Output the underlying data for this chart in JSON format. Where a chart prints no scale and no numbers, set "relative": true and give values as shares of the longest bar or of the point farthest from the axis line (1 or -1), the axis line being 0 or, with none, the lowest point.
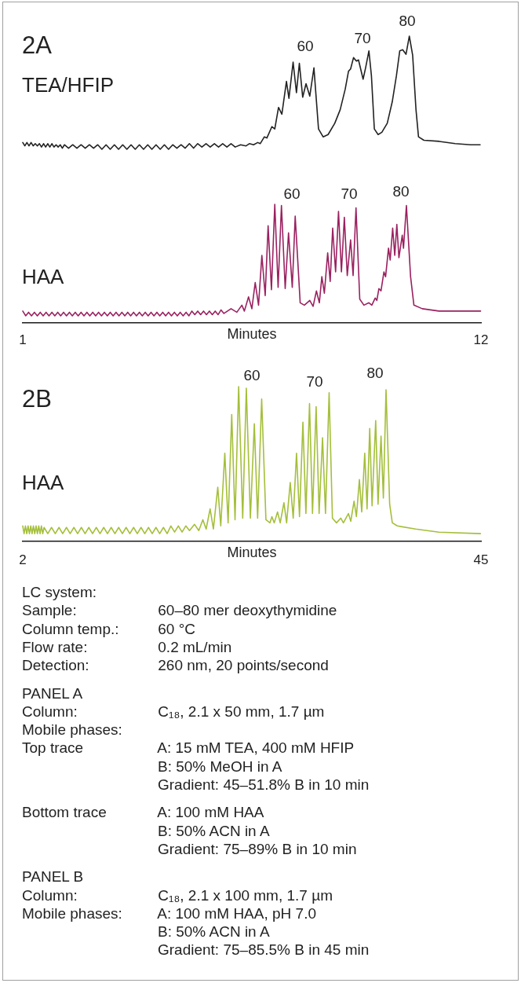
{
  "chart_data": [
    {
      "type": "line",
      "title": "2A",
      "relative": true,
      "xlim": [
        1,
        12
      ],
      "tick_labels": false,
      "series": [
        {
          "name": "TEA/HFIP",
          "color": "#222222",
          "x": [
            1.0,
            1.05,
            1.1,
            1.15,
            1.2,
            1.25,
            1.3,
            1.35,
            1.4,
            1.45,
            1.5,
            1.55,
            1.6,
            1.65,
            1.7,
            1.75,
            1.8,
            1.85,
            1.9,
            1.95,
            2.0,
            2.1,
            2.2,
            2.3,
            2.4,
            2.5,
            2.6,
            2.7,
            2.8,
            2.9,
            3.0,
            3.1,
            3.2,
            3.3,
            3.4,
            3.5,
            3.6,
            3.7,
            3.8,
            3.9,
            4.0,
            4.1,
            4.2,
            4.3,
            4.4,
            4.5,
            4.6,
            4.7,
            4.8,
            4.9,
            5.0,
            5.1,
            5.2,
            5.3,
            5.4,
            5.5,
            5.6,
            5.7,
            5.8,
            5.9,
            6.0,
            6.1,
            6.23,
            6.36,
            6.44,
            6.54,
            6.64,
            6.7,
            6.8,
            6.86,
            6.98,
            7.05,
            7.14,
            7.22,
            7.33,
            7.39,
            7.49,
            7.57,
            7.64,
            7.72,
            7.8,
            7.89,
            7.99,
            8.1,
            8.21,
            8.33,
            8.49,
            8.62,
            8.74,
            8.82,
            8.87,
            8.94,
            9.01,
            9.06,
            9.17,
            9.23,
            9.31,
            9.37,
            9.44,
            9.53,
            9.62,
            9.75,
            9.87,
            9.97,
            10.05,
            10.12,
            10.2,
            10.28,
            10.36,
            10.44,
            10.5,
            10.63,
            11.0,
            11.38,
            11.75,
            11.98
          ],
          "values": [
            0.06,
            0.03,
            0.06,
            0.03,
            0.06,
            0.03,
            0.05,
            0.03,
            0.05,
            0.02,
            0.05,
            0.02,
            0.05,
            0.02,
            0.05,
            0.02,
            0.04,
            0.02,
            0.04,
            0.01,
            0.04,
            0.01,
            0.04,
            0.01,
            0.04,
            0.01,
            0.04,
            0.01,
            0.04,
            0,
            0.04,
            0,
            0.04,
            0,
            0.04,
            0,
            0.04,
            0,
            0.04,
            0,
            0.04,
            0,
            0.04,
            0,
            0.04,
            0,
            0.04,
            0.01,
            0.04,
            0.01,
            0.05,
            0.01,
            0.05,
            0.02,
            0.05,
            0.02,
            0.05,
            0.02,
            0.05,
            0.02,
            0.05,
            0.02,
            0.04,
            0.03,
            0.05,
            0.04,
            0.06,
            0.05,
            0.11,
            0.1,
            0.2,
            0.18,
            0.37,
            0.31,
            0.6,
            0.45,
            0.77,
            0.5,
            0.76,
            0.46,
            0.58,
            0.47,
            0.72,
            0.18,
            0.11,
            0.13,
            0.23,
            0.35,
            0.53,
            0.69,
            0.71,
            0.81,
            0.78,
            0.79,
            0.62,
            0.72,
            0.87,
            0.65,
            0.18,
            0.13,
            0.15,
            0.23,
            0.42,
            0.65,
            0.87,
            0.88,
            0.84,
            1,
            0.83,
            0.35,
            0.11,
            0.08,
            0.07,
            0.05,
            0.04,
            0.04
          ]
        }
      ],
      "annotations": [
        "60",
        "70",
        "80"
      ]
    },
    {
      "type": "line",
      "xlabel": "Minutes",
      "relative": true,
      "xlim": [
        1,
        12
      ],
      "xticks": [
        1,
        12
      ],
      "series": [
        {
          "name": "HAA",
          "color": "#9a2160",
          "x": [
            1.0,
            1.07,
            1.14,
            1.21,
            1.28,
            1.35,
            1.42,
            1.49,
            1.56,
            1.63,
            1.7,
            1.77,
            1.84,
            1.91,
            1.98,
            2.05,
            2.12,
            2.19,
            2.26,
            2.33,
            2.4,
            2.47,
            2.54,
            2.61,
            2.68,
            2.75,
            2.82,
            2.89,
            2.96,
            3.03,
            3.1,
            3.17,
            3.24,
            3.31,
            3.38,
            3.45,
            3.52,
            3.59,
            3.66,
            3.73,
            3.8,
            3.87,
            3.94,
            4.01,
            4.08,
            4.15,
            4.22,
            4.29,
            4.36,
            4.43,
            4.5,
            4.57,
            4.64,
            4.71,
            4.78,
            4.85,
            4.92,
            4.99,
            5.06,
            5.13,
            5.2,
            5.27,
            5.34,
            5.41,
            5.48,
            5.55,
            5.62,
            5.69,
            5.76,
            5.83,
            6.0,
            6.14,
            6.26,
            6.32,
            6.42,
            6.5,
            6.58,
            6.66,
            6.74,
            6.82,
            6.89,
            6.97,
            7.05,
            7.13,
            7.21,
            7.3,
            7.38,
            7.47,
            7.54,
            7.66,
            7.76,
            7.89,
            7.97,
            8.05,
            8.12,
            8.18,
            8.24,
            8.32,
            8.38,
            8.44,
            8.51,
            8.58,
            8.65,
            8.72,
            8.79,
            8.87,
            8.93,
            9.0,
            9.09,
            9.19,
            9.31,
            9.38,
            9.46,
            9.5,
            9.55,
            9.6,
            9.67,
            9.71,
            9.78,
            9.82,
            9.88,
            9.93,
            9.98,
            10.03,
            10.11,
            10.14,
            10.21,
            10.31,
            10.39,
            10.59,
            10.99,
            11.99
          ],
          "values": [
            0.1,
            0.06,
            0.09,
            0.06,
            0.09,
            0.06,
            0.09,
            0.06,
            0.09,
            0.06,
            0.09,
            0.06,
            0.09,
            0.06,
            0.09,
            0.06,
            0.09,
            0.06,
            0.09,
            0.06,
            0.09,
            0.06,
            0.09,
            0.06,
            0.09,
            0.06,
            0.09,
            0.06,
            0.09,
            0.06,
            0.09,
            0.06,
            0.09,
            0.06,
            0.09,
            0.06,
            0.09,
            0.06,
            0.09,
            0.06,
            0.09,
            0.06,
            0.09,
            0.06,
            0.09,
            0.06,
            0.09,
            0.06,
            0.09,
            0.06,
            0.09,
            0.06,
            0.09,
            0.06,
            0.09,
            0.06,
            0.09,
            0.06,
            0.1,
            0.07,
            0.1,
            0.07,
            0.1,
            0.07,
            0.1,
            0.07,
            0.1,
            0.07,
            0.11,
            0.08,
            0.12,
            0.09,
            0.15,
            0.1,
            0.22,
            0.12,
            0.34,
            0.15,
            0.57,
            0.23,
            0.82,
            0.28,
            1,
            0.3,
            0.99,
            0.29,
            0.76,
            0.3,
            0.9,
            0.17,
            0.15,
            0.19,
            0.14,
            0.27,
            0.17,
            0.39,
            0.25,
            0.59,
            0.35,
            0.8,
            0.43,
            0.94,
            0.43,
            0.89,
            0.4,
            0.7,
            0.4,
            0.97,
            0.2,
            0.15,
            0.17,
            0.15,
            0.21,
            0.19,
            0.29,
            0.27,
            0.43,
            0.39,
            0.63,
            0.53,
            0.8,
            0.57,
            0.83,
            0.55,
            0.74,
            0.63,
            0.99,
            0.39,
            0.15,
            0.12,
            0.1,
            0.1
          ]
        }
      ],
      "annotations": [
        "60",
        "70",
        "80"
      ]
    },
    {
      "type": "line",
      "title": "2B",
      "xlabel": "Minutes",
      "relative": true,
      "xlim": [
        2,
        45
      ],
      "xticks": [
        2,
        45
      ],
      "series": [
        {
          "name": "HAA",
          "color": "#a4bf3b",
          "x": [
            2.0,
            2.125,
            2.25,
            2.375,
            2.5,
            2.625,
            2.75,
            2.875,
            3.0,
            3.125,
            3.25,
            3.375,
            3.5,
            3.625,
            3.75,
            3.875,
            4.0,
            4.35,
            4.7,
            5.05,
            5.4,
            5.75,
            6.1,
            6.45,
            6.8,
            7.15,
            7.5,
            7.85,
            8.2,
            8.55,
            8.9,
            9.25,
            9.6,
            9.95,
            10.3,
            10.65,
            11.0,
            11.35,
            11.7,
            12.05,
            12.4,
            12.75,
            13.1,
            13.45,
            13.8,
            14.15,
            14.5,
            14.85,
            15.2,
            15.55,
            15.9,
            16.25,
            16.6,
            16.95,
            17.3,
            17.65,
            18.12,
            18.52,
            18.9,
            19.21,
            19.58,
            19.89,
            20.3,
            20.58,
            20.96,
            21.27,
            21.61,
            21.92,
            22.26,
            22.64,
            22.98,
            23.36,
            23.73,
            24.04,
            24.42,
            24.82,
            25.2,
            25.38,
            25.6,
            25.91,
            26.16,
            26.51,
            26.76,
            27.1,
            27.38,
            27.69,
            27.97,
            28.29,
            28.57,
            28.91,
            29.19,
            29.53,
            29.81,
            30.13,
            30.41,
            30.75,
            31.06,
            31.44,
            31.84,
            32.09,
            32.56,
            32.78,
            33.09,
            33.31,
            33.59,
            33.81,
            34.09,
            34.31,
            34.56,
            34.78,
            35.12,
            35.34,
            35.62,
            35.84,
            36.09,
            36.43,
            36.68,
            37.15,
            38.86,
            41.05,
            44.95
          ],
          "values": [
            0.1,
            0.05,
            0.1,
            0.05,
            0.1,
            0.05,
            0.1,
            0.05,
            0.1,
            0.05,
            0.1,
            0.05,
            0.1,
            0.05,
            0.1,
            0.05,
            0.09,
            0.05,
            0.09,
            0.05,
            0.09,
            0.05,
            0.09,
            0.05,
            0.09,
            0.05,
            0.09,
            0.05,
            0.09,
            0.05,
            0.09,
            0.05,
            0.09,
            0.05,
            0.09,
            0.05,
            0.09,
            0.05,
            0.09,
            0.05,
            0.09,
            0.05,
            0.09,
            0.05,
            0.09,
            0.05,
            0.09,
            0.05,
            0.09,
            0.05,
            0.1,
            0.06,
            0.1,
            0.06,
            0.1,
            0.07,
            0.11,
            0.07,
            0.14,
            0.08,
            0.21,
            0.08,
            0.35,
            0.1,
            0.57,
            0.12,
            0.82,
            0.14,
            1,
            0.15,
            0.99,
            0.15,
            0.76,
            0.15,
            0.92,
            0.14,
            0.12,
            0.16,
            0.12,
            0.19,
            0.12,
            0.25,
            0.12,
            0.38,
            0.15,
            0.57,
            0.16,
            0.77,
            0.18,
            0.89,
            0.18,
            0.87,
            0.18,
            0.67,
            0.18,
            0.96,
            0.15,
            0.12,
            0.15,
            0.12,
            0.18,
            0.13,
            0.26,
            0.16,
            0.4,
            0.19,
            0.57,
            0.21,
            0.73,
            0.23,
            0.78,
            0.24,
            0.68,
            0.28,
            0.98,
            0.24,
            0.12,
            0.1,
            0.08,
            0.06,
            0.05
          ]
        }
      ],
      "annotations": [
        "60",
        "70",
        "80"
      ]
    },
    {
      "type": "other",
      "annotations": [
        "LC system:",
        "Sample:\t60–80 mer deoxythymidine",
        "Column temp.:\t60 °C",
        "Flow rate:\t0.2 mL/min",
        "Detection:\t260 nm, 20 points/second",
        "PANEL A",
        "Column:\tC₁₈, 2.1 x 50 mm, 1.7 µm",
        "Mobile phases:",
        "Top trace\tA: 15 mM TEA, 400 mM HFIP",
        "\tB: 50% MeOH in A",
        "\tGradient: 45–51.8% B in 10 min",
        "Bottom trace\tA: 100 mM HAA",
        "\tB: 50% ACN in A",
        "\tGradient: 75–89% B in 10 min",
        "PANEL B",
        "Column:\tC₁₈, 2.1 x 100 mm, 1.7 µm",
        "Mobile phases:\tA: 100 mM HAA, pH 7.0",
        "\tB: 50% ACN in A",
        "\tGradient: 75–85.5% B in 45 min"
      ]
    }
  ]
}
